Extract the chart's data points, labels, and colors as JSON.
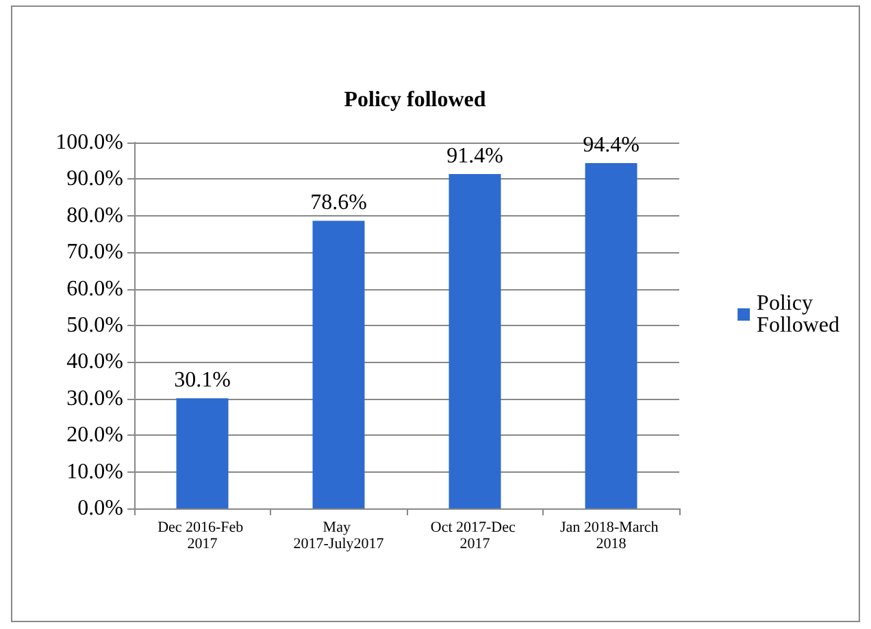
{
  "chart_data": {
    "type": "bar",
    "title": "Policy followed",
    "categories": [
      "Dec 2016-Feb 2017",
      "May 2017-July2017",
      "Oct 2017-Dec 2017",
      "Jan 2018-March 2018"
    ],
    "series": [
      {
        "name": "Policy Followed",
        "color": "#2e6bd0",
        "values": [
          30.1,
          78.6,
          91.4,
          94.4
        ],
        "value_labels": [
          "30.1%",
          "78.6%",
          "91.4%",
          "94.4%"
        ]
      }
    ],
    "ylim": [
      0,
      100
    ],
    "yticks": [
      {
        "value": 0,
        "label": "0.0%"
      },
      {
        "value": 10,
        "label": "10.0%"
      },
      {
        "value": 20,
        "label": "20.0%"
      },
      {
        "value": 30,
        "label": "30.0%"
      },
      {
        "value": 40,
        "label": "40.0%"
      },
      {
        "value": 50,
        "label": "50.0%"
      },
      {
        "value": 60,
        "label": "60.0%"
      },
      {
        "value": 70,
        "label": "70.0%"
      },
      {
        "value": 80,
        "label": "80.0%"
      },
      {
        "value": 90,
        "label": "90.0%"
      },
      {
        "value": 100,
        "label": "100.0%"
      }
    ],
    "grid": "y",
    "legend": "right"
  }
}
